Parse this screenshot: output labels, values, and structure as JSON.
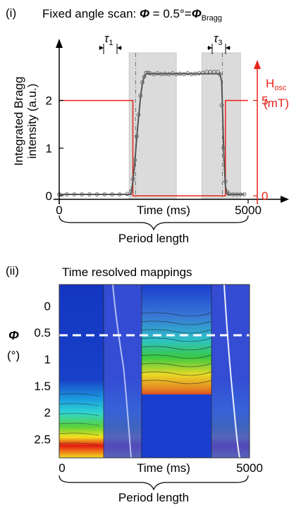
{
  "panel_i": {
    "label": "(i)",
    "title_prefix": "Fixed angle scan: ",
    "title_phi": "Φ",
    "title_eq": " = 0.5°=",
    "title_phi2": "Φ",
    "title_sub": "Bragg",
    "ylabel_line1": "Integrated Bragg",
    "ylabel_line2": "intensity (a.u.)",
    "xlabel": "Time (ms)",
    "y2label_main": "H",
    "y2label_sub": "osc",
    "y2label_unit": "(mT)",
    "tau1_main": "τ",
    "tau1_sub": "1",
    "tau3_main": "τ",
    "tau3_sub": "3",
    "brace_label": "Period length"
  },
  "panel_ii": {
    "label": "(ii)",
    "title": "Time resolved mappings",
    "ylabel_symbol": "Φ",
    "ylabel_unit": "(°)",
    "xlabel": "Time (ms)",
    "brace_label": "Period length"
  },
  "colors": {
    "data_markers": "#666666",
    "fit_line": "#555555",
    "field_line": "#e8231b",
    "shade": "#cfcfcf",
    "dashed_marker": "#ffffff"
  },
  "chart_data": [
    {
      "type": "scatter",
      "panel": "i",
      "x_axis": {
        "range": [
          0,
          5000
        ],
        "ticks": [
          0,
          5000
        ],
        "tick_labels": [
          "0",
          "5000"
        ],
        "label": "Time (ms)"
      },
      "y_axis": {
        "range": [
          0,
          2.6
        ],
        "ticks": [
          0,
          1,
          2
        ],
        "tick_labels": [
          "0",
          "1",
          "2"
        ],
        "label": "Integrated Bragg intensity (a.u.)"
      },
      "y2_axis": {
        "range": [
          0,
          6.5
        ],
        "ticks": [
          0,
          5
        ],
        "tick_labels": [
          "0",
          "5"
        ],
        "label": "Hosc (mT)"
      },
      "shaded_regions": [
        [
          1850,
          3100
        ],
        [
          3100,
          3100
        ],
        [
          3780,
          4800
        ]
      ],
      "series": [
        {
          "kind": "markers",
          "x": [
            0,
            200,
            400,
            600,
            800,
            1000,
            1200,
            1400,
            1600,
            1800,
            1900,
            1950,
            2000,
            2050,
            2100,
            2150,
            2200,
            2250,
            2300,
            2350,
            2400,
            2500,
            2600,
            2700,
            2800,
            2900,
            3000,
            3100,
            3200,
            3300,
            3400,
            3500,
            3600,
            3700,
            3800,
            3900,
            4000,
            4100,
            4200,
            4250,
            4300,
            4350,
            4400,
            4450,
            4500,
            4600,
            4700,
            4800,
            4900
          ],
          "y": [
            0.03,
            0.03,
            0.03,
            0.03,
            0.03,
            0.03,
            0.03,
            0.03,
            0.03,
            0.04,
            0.1,
            0.35,
            0.75,
            1.25,
            1.7,
            2.1,
            2.38,
            2.5,
            2.58,
            2.58,
            2.57,
            2.55,
            2.57,
            2.55,
            2.56,
            2.55,
            2.57,
            2.55,
            2.56,
            2.55,
            2.57,
            2.55,
            2.56,
            2.57,
            2.58,
            2.6,
            2.6,
            2.6,
            2.6,
            2.55,
            1.9,
            1.0,
            0.3,
            0.08,
            0.04,
            0.03,
            0.03,
            0.03,
            0.03
          ]
        },
        {
          "kind": "fit",
          "x": [
            0,
            1900,
            1950,
            2000,
            2050,
            2100,
            2150,
            2200,
            2250,
            2300,
            2350,
            4250,
            4300,
            4330,
            4360,
            4400,
            4450,
            4900
          ],
          "y": [
            0.03,
            0.03,
            0.3,
            0.7,
            1.2,
            1.65,
            2.05,
            2.35,
            2.5,
            2.56,
            2.56,
            2.56,
            2.4,
            1.6,
            0.8,
            0.2,
            0.03,
            0.03
          ]
        },
        {
          "kind": "field_step",
          "axis": "y2",
          "x": [
            0,
            1950,
            1950,
            4400,
            4400,
            5000
          ],
          "y": [
            5,
            5,
            0,
            0,
            5,
            5
          ]
        }
      ],
      "annotations": [
        "τ1",
        "τ3"
      ]
    },
    {
      "type": "heatmap",
      "panel": "ii",
      "x_axis": {
        "range": [
          0,
          5000
        ],
        "ticks": [
          0,
          5000
        ],
        "tick_labels": [
          "0",
          "5000"
        ],
        "label": "Time (ms)"
      },
      "y_axis": {
        "range": [
          -0.4,
          2.85
        ],
        "inverted": true,
        "ticks": [
          0,
          0.5,
          1,
          1.5,
          2,
          2.5
        ],
        "tick_labels": [
          "0",
          "0.5",
          "1",
          "1.5",
          "2",
          "2.5"
        ],
        "label": "Φ (°)"
      },
      "dashed_line_at": 0.5,
      "overlay_regions": [
        [
          1000,
          1900
        ],
        [
          3700,
          4400
        ]
      ]
    }
  ]
}
